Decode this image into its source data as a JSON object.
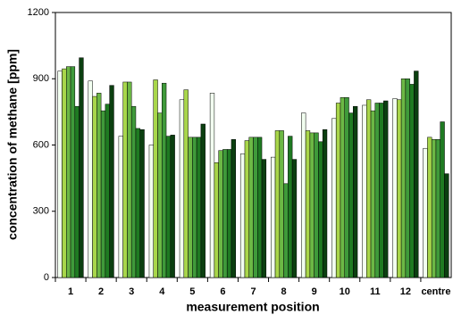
{
  "chart_data": {
    "type": "bar",
    "xlabel": "measurement position",
    "ylabel": "concentration of methane [ppm]",
    "categories": [
      "1",
      "2",
      "3",
      "4",
      "5",
      "6",
      "7",
      "8",
      "9",
      "10",
      "11",
      "12",
      "centre"
    ],
    "ylim": [
      0,
      1200
    ],
    "yticks": [
      0,
      300,
      600,
      900,
      1200
    ],
    "series": [
      {
        "color": "#f2fff0",
        "values": [
          935,
          890,
          640,
          600,
          805,
          835,
          560,
          545,
          745,
          720,
          780,
          810,
          585
        ]
      },
      {
        "color": "#a8d64a",
        "values": [
          945,
          820,
          885,
          895,
          850,
          520,
          620,
          665,
          665,
          790,
          805,
          805,
          635
        ]
      },
      {
        "color": "#6cb845",
        "values": [
          955,
          835,
          885,
          745,
          635,
          575,
          635,
          665,
          655,
          815,
          755,
          900,
          625
        ]
      },
      {
        "color": "#3f9a3a",
        "values": [
          955,
          755,
          775,
          880,
          635,
          580,
          635,
          425,
          655,
          815,
          790,
          900,
          625
        ]
      },
      {
        "color": "#1f7a22",
        "values": [
          775,
          785,
          675,
          640,
          635,
          580,
          635,
          640,
          615,
          745,
          790,
          875,
          705
        ]
      },
      {
        "color": "#0b3f10",
        "values": [
          995,
          870,
          670,
          645,
          695,
          625,
          535,
          535,
          670,
          775,
          800,
          935,
          470
        ]
      }
    ]
  }
}
